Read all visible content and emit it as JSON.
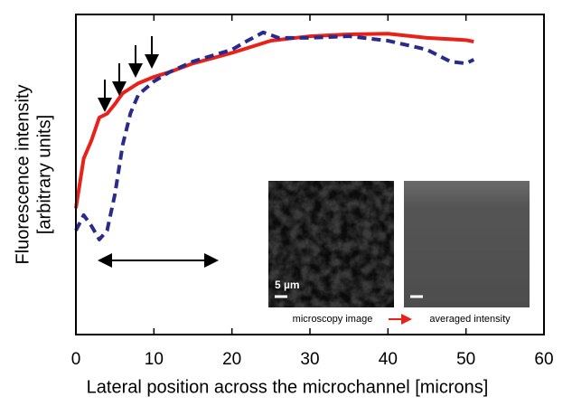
{
  "chart_data": {
    "type": "line",
    "xlabel": "Lateral position across the microchannel [microns]",
    "ylabel": [
      "Fluorescence intensity",
      "[arbitrary units]"
    ],
    "xlim": [
      0,
      60
    ],
    "xticks": [
      0,
      10,
      20,
      30,
      40,
      50,
      60
    ],
    "ylim": [
      0,
      1
    ],
    "series": [
      {
        "color": "#e8211b",
        "style": "solid",
        "x": [
          0,
          1,
          2,
          3,
          4,
          5,
          6,
          8,
          10,
          12,
          15,
          20,
          25,
          30,
          35,
          40,
          45,
          50,
          51
        ],
        "values": [
          0.395,
          0.55,
          0.607,
          0.678,
          0.69,
          0.72,
          0.754,
          0.785,
          0.805,
          0.82,
          0.847,
          0.88,
          0.918,
          0.932,
          0.938,
          0.94,
          0.927,
          0.92,
          0.915
        ]
      },
      {
        "color": "#2a2a8c",
        "style": "dashed",
        "x": [
          0,
          1,
          2,
          3,
          4,
          5,
          6,
          7,
          8,
          10,
          12,
          15,
          20,
          22,
          24,
          26,
          30,
          35,
          40,
          45,
          48,
          50,
          51
        ],
        "values": [
          0.325,
          0.373,
          0.339,
          0.297,
          0.325,
          0.438,
          0.593,
          0.692,
          0.749,
          0.791,
          0.82,
          0.853,
          0.89,
          0.918,
          0.944,
          0.927,
          0.927,
          0.932,
          0.918,
          0.89,
          0.853,
          0.847,
          0.859
        ]
      }
    ],
    "inset": {
      "scale_label": "5 µm",
      "left_caption": "microscopy image",
      "right_caption": "averaged intensity"
    }
  }
}
